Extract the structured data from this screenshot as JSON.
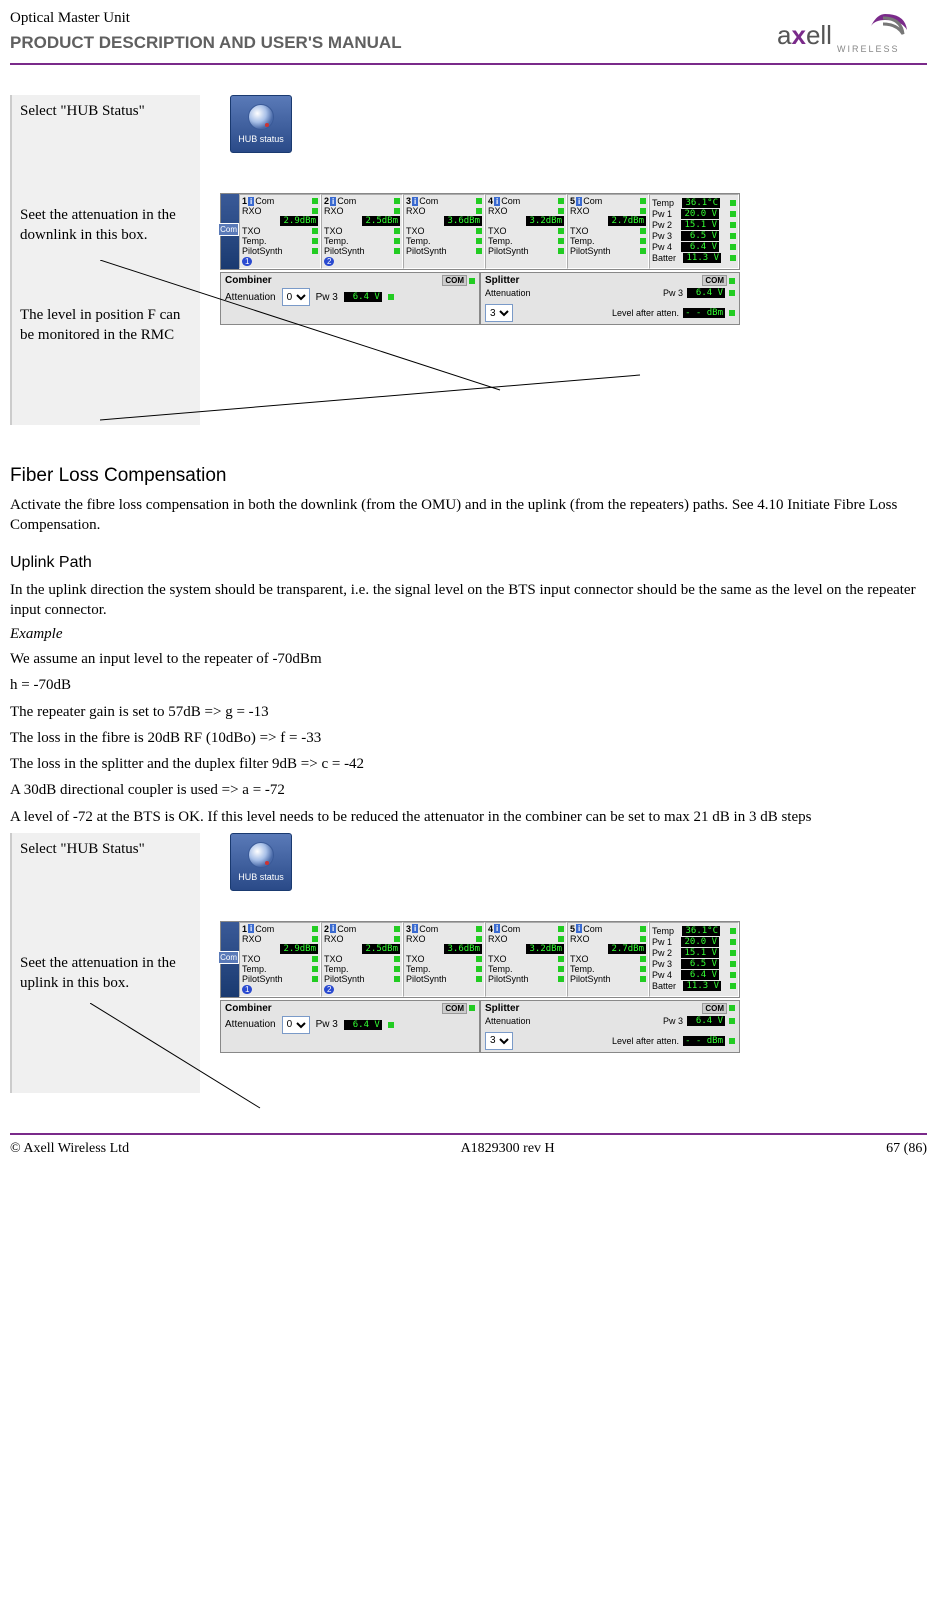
{
  "header": {
    "product": "Optical Master Unit",
    "subtitle": "PRODUCT DESCRIPTION AND USER'S MANUAL",
    "logo_brand_a": "axell",
    "logo_wireless": "WIRELESS"
  },
  "step1": {
    "select_hub": "Select \"HUB Status\"",
    "set_atten_dl": "Seet the attenuation in the downlink in this box.",
    "level_f": "The level in position F can be monitored in the RMC",
    "hub_btn_label": "HUB status"
  },
  "rack": {
    "side_com": "Com",
    "side_label": "Rack 1",
    "slots": [
      {
        "n": "1",
        "rx": "RXO",
        "rxval": "2.9dBm",
        "tx": "TXO",
        "t1": "Temp.",
        "t2": "PilotSynth",
        "badge": "1"
      },
      {
        "n": "2",
        "rx": "RXO",
        "rxval": "2.5dBm",
        "tx": "TXO",
        "t1": "Temp.",
        "t2": "PilotSynth",
        "badge": "2"
      },
      {
        "n": "3",
        "rx": "RXO",
        "rxval": "3.6dBm",
        "tx": "TXO",
        "t1": "Temp.",
        "t2": "PilotSynth",
        "badge": ""
      },
      {
        "n": "4",
        "rx": "RXO",
        "rxval": "3.2dBm",
        "tx": "TXO",
        "t1": "Temp.",
        "t2": "PilotSynth",
        "badge": ""
      },
      {
        "n": "5",
        "rx": "RXO",
        "rxval": "2.7dBm",
        "tx": "TXO",
        "t1": "Temp.",
        "t2": "PilotSynth",
        "badge": ""
      }
    ],
    "side_read": [
      {
        "k": "Temp",
        "v": "36.1°C"
      },
      {
        "k": "Pw 1",
        "v": "20.0 V"
      },
      {
        "k": "Pw 2",
        "v": "15.1 V"
      },
      {
        "k": "Pw 3",
        "v": "6.5 V"
      },
      {
        "k": "Pw 4",
        "v": "6.4 V"
      },
      {
        "k": "Batter",
        "v": "11.3 V"
      }
    ],
    "com_label": "Com"
  },
  "combiner": {
    "title": "Combiner",
    "atten": "Attenuation",
    "sel": "0",
    "pw": "Pw 3",
    "pwval": "6.4 V",
    "com": "COM"
  },
  "splitter": {
    "title": "Splitter",
    "atten": "Attenuation",
    "sel": "3",
    "pw": "Pw 3",
    "pwval": "6.4 V",
    "level_label": "Level after atten.",
    "level_val": "- - dBm",
    "com": "COM"
  },
  "fiber": {
    "h": "Fiber Loss Compensation",
    "p": "Activate the fibre loss compensation in both the downlink (from the OMU) and in the uplink (from the repeaters) paths. See 4.10 Initiate Fibre Loss Compensation."
  },
  "uplink": {
    "h": "Uplink Path",
    "p1": "In the uplink direction the system should be transparent, i.e. the signal level on the BTS input connector should be the same as the level on the repeater input connector.",
    "ex": "Example",
    "l1": "We assume an input level to the repeater of -70dBm",
    "l2": "h = -70dB",
    "l3": "The repeater gain is set to 57dB => g = -13",
    "l4": "The loss in the fibre is 20dB RF (10dBo) => f = -33",
    "l5": "The loss in the splitter and the duplex filter 9dB => c = -42",
    "l6": "A 30dB directional coupler is used => a = -72",
    "l7": "A level of -72 at the BTS is OK. If this level needs to be reduced the attenuator in the combiner can be set to max 21 dB in 3 dB steps"
  },
  "step2": {
    "select_hub": "Select \"HUB Status\"",
    "set_atten_ul": "Seet the attenuation in the uplink in this box."
  },
  "footer": {
    "left": "© Axell Wireless Ltd",
    "mid": "A1829300 rev H",
    "right": "67 (86)"
  }
}
